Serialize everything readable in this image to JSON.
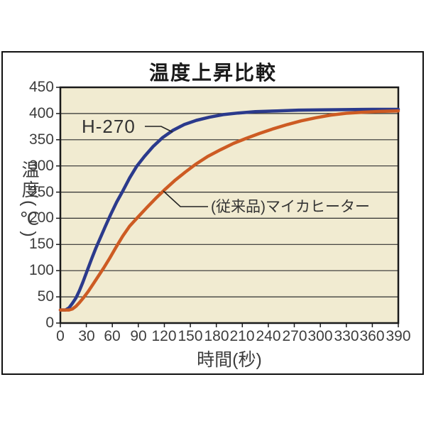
{
  "chart_data": {
    "type": "line",
    "title": "温度上昇比較",
    "xlabel": "時間(秒)",
    "ylabel": "温度(℃)",
    "xlim": [
      0,
      390
    ],
    "ylim": [
      0,
      450
    ],
    "x_ticks": [
      0,
      30,
      60,
      90,
      120,
      150,
      180,
      210,
      240,
      270,
      300,
      330,
      360,
      390
    ],
    "y_ticks": [
      0,
      50,
      100,
      150,
      200,
      250,
      300,
      350,
      400,
      450
    ],
    "grid": "horizontal",
    "legend_position": "inline-annotations",
    "plot_background": "#f1ebd1",
    "gridline_color": "#2f2f2f",
    "series": [
      {
        "name": "H-270",
        "color": "#2b3a8c",
        "points": [
          [
            0,
            25
          ],
          [
            6,
            25
          ],
          [
            10,
            29
          ],
          [
            14,
            38
          ],
          [
            18,
            48
          ],
          [
            22,
            62
          ],
          [
            26,
            78
          ],
          [
            31,
            100
          ],
          [
            36,
            122
          ],
          [
            41,
            143
          ],
          [
            46,
            162
          ],
          [
            52,
            185
          ],
          [
            58,
            207
          ],
          [
            65,
            231
          ],
          [
            72,
            252
          ],
          [
            80,
            277
          ],
          [
            88,
            299
          ],
          [
            97,
            318
          ],
          [
            107,
            337
          ],
          [
            118,
            354
          ],
          [
            130,
            368
          ],
          [
            143,
            379
          ],
          [
            157,
            387
          ],
          [
            172,
            393
          ],
          [
            188,
            398
          ],
          [
            205,
            401
          ],
          [
            225,
            403.5
          ],
          [
            250,
            405
          ],
          [
            275,
            406.5
          ],
          [
            300,
            407
          ],
          [
            330,
            407.5
          ],
          [
            360,
            408
          ],
          [
            390,
            408
          ]
        ]
      },
      {
        "name": "(従来品)マイカヒーター",
        "color": "#cd5b23",
        "points": [
          [
            0,
            25
          ],
          [
            10,
            25
          ],
          [
            14,
            27
          ],
          [
            18,
            32
          ],
          [
            22,
            39
          ],
          [
            27,
            49
          ],
          [
            32,
            60
          ],
          [
            38,
            75
          ],
          [
            44,
            90
          ],
          [
            50,
            105
          ],
          [
            57,
            124
          ],
          [
            64,
            144
          ],
          [
            72,
            166
          ],
          [
            80,
            185
          ],
          [
            90,
            203
          ],
          [
            100,
            221
          ],
          [
            110,
            238
          ],
          [
            120,
            254
          ],
          [
            132,
            272
          ],
          [
            144,
            288
          ],
          [
            156,
            303
          ],
          [
            170,
            318
          ],
          [
            185,
            331
          ],
          [
            200,
            343
          ],
          [
            215,
            353
          ],
          [
            230,
            362
          ],
          [
            246,
            371
          ],
          [
            262,
            379
          ],
          [
            278,
            386
          ],
          [
            295,
            392
          ],
          [
            312,
            397
          ],
          [
            330,
            400.5
          ],
          [
            350,
            402.5
          ],
          [
            370,
            404
          ],
          [
            390,
            405
          ]
        ]
      }
    ]
  }
}
